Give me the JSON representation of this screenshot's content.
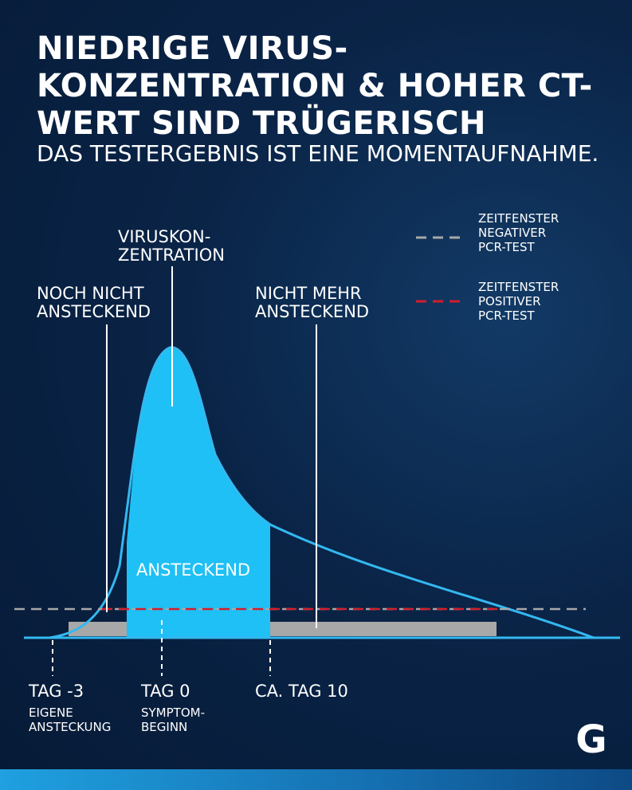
{
  "title": "Niedrige Virus-Konzentration & hoher CT-Wert sind trügerisch",
  "subtitle": "Das Testergebnis ist eine Momentaufnahme.",
  "labels": {
    "virus_concentration": "Viruskon-\nzentration",
    "not_yet_contagious": "Noch nicht\nansteckend",
    "no_longer_contagious": "Nicht mehr\nansteckend",
    "contagious": "ANSTECKEND"
  },
  "legend": {
    "negative": {
      "label": "Zeitfenster\nnegativer\nPCR-Test",
      "color": "#a8a8a8"
    },
    "positive": {
      "label": "Zeitfenster\npositiver\nPCR-Test",
      "color": "#d21e2b"
    }
  },
  "timeline": [
    {
      "tick": "Tag -3",
      "sub": "eigene\nAnsteckung"
    },
    {
      "tick": "Tag 0",
      "sub": "Symptom-\nbeginn"
    },
    {
      "tick": "ca. Tag 10",
      "sub": ""
    }
  ],
  "colors": {
    "curve": "#34b8f0",
    "fill": "#1ec0f5",
    "background": "#0a2447"
  },
  "logo": "G"
}
